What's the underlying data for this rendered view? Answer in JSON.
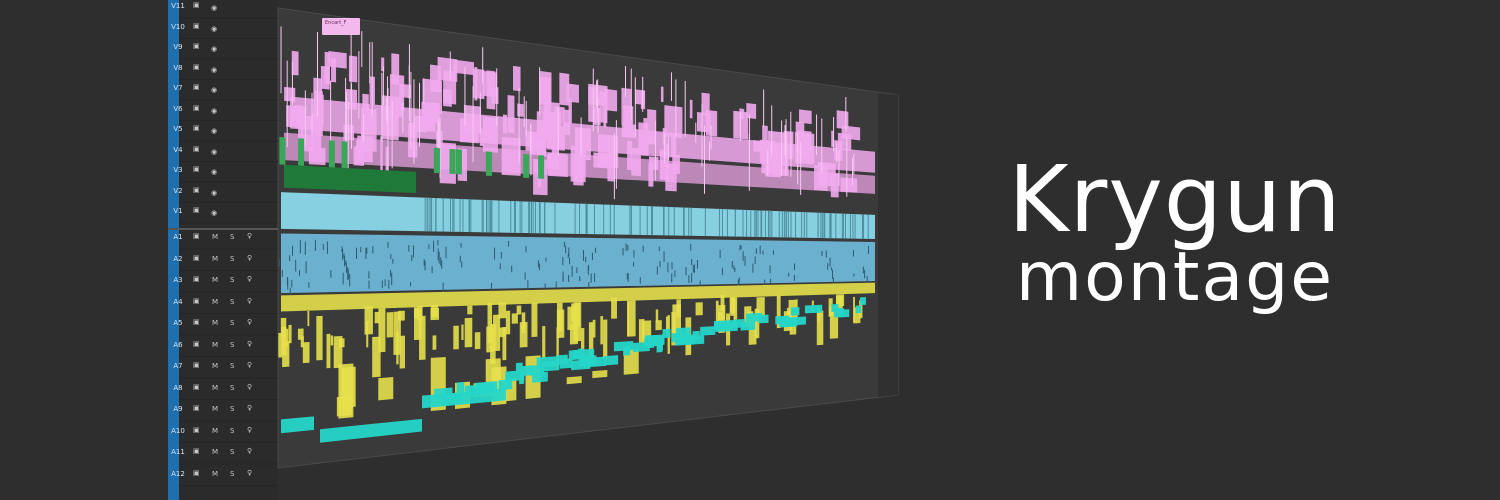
{
  "app": {
    "title_main": "Krygun",
    "title_sub": "montage"
  },
  "timeline": {
    "video_tracks": [
      "V11",
      "V10",
      "V9",
      "V8",
      "V7",
      "V6",
      "V5",
      "V4",
      "V3",
      "V2",
      "V1"
    ],
    "audio_tracks": [
      "A1",
      "A2",
      "A3",
      "A4",
      "A5",
      "A6",
      "A7",
      "A8",
      "A9",
      "A10",
      "A11",
      "A12"
    ],
    "audio_buttons": {
      "mute": "M",
      "solo": "S"
    },
    "clip_label": "Encart_F",
    "colors": {
      "video_pink": "#f2aaee",
      "video_cyan": "#8ad8ea",
      "video_green": "#1f7a3a",
      "audio_blue": "#6fb6d8",
      "audio_yellow": "#e5e04a",
      "audio_teal": "#25d6c8",
      "label_column": "#1e6fb0",
      "panel_bg": "#3a3a3a"
    },
    "icons": {
      "video_track": [
        "film-icon",
        "eye-icon"
      ],
      "audio_track": [
        "film-icon",
        "mute-button",
        "solo-button",
        "microphone-icon"
      ]
    }
  }
}
